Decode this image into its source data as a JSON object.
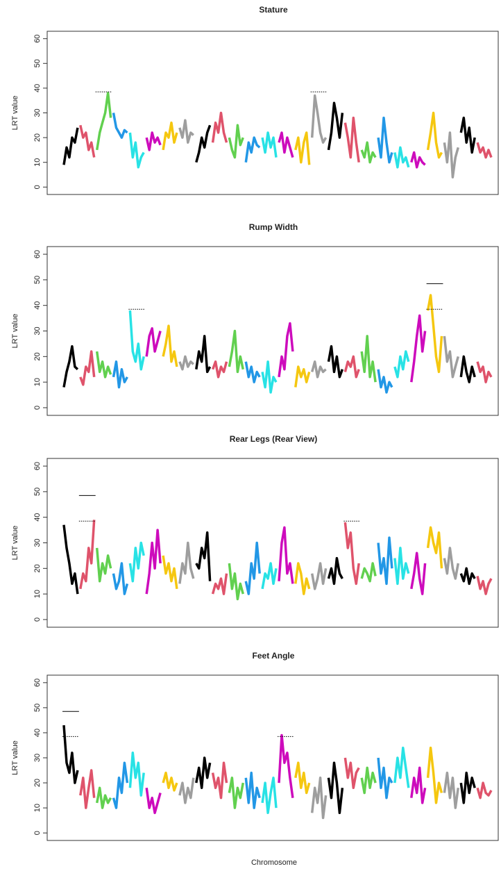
{
  "x_label": "Chromosome",
  "chart_data": [
    {
      "type": "line",
      "title": "Stature",
      "y_label": "LRT value",
      "ylim": [
        -3,
        63
      ],
      "yticks": [
        0,
        10,
        20,
        30,
        40,
        50,
        60
      ],
      "colors": [
        "#000000",
        "#DF536B",
        "#61D04F",
        "#2297E6",
        "#28E2E5",
        "#CD0BBC",
        "#F5C710",
        "#9E9E9E"
      ],
      "series": [
        {
          "values": [
            9,
            16,
            12,
            20,
            18,
            24
          ]
        },
        {
          "values": [
            25,
            20,
            22,
            15,
            18,
            12
          ]
        },
        {
          "values": [
            15,
            22,
            26,
            30,
            38,
            28
          ]
        },
        {
          "values": [
            30,
            24,
            22,
            20,
            23,
            22
          ]
        },
        {
          "values": [
            22,
            12,
            18,
            8,
            12,
            14
          ]
        },
        {
          "values": [
            20,
            15,
            22,
            18,
            20,
            17
          ]
        },
        {
          "values": [
            15,
            22,
            20,
            26,
            18,
            22
          ]
        },
        {
          "values": [
            24,
            20,
            27,
            18,
            22,
            21
          ]
        },
        {
          "values": [
            10,
            14,
            20,
            16,
            22,
            25
          ]
        },
        {
          "values": [
            18,
            26,
            22,
            30,
            22,
            18
          ]
        },
        {
          "values": [
            20,
            15,
            12,
            25,
            17,
            20
          ]
        },
        {
          "values": [
            10,
            18,
            14,
            20,
            17,
            16
          ]
        },
        {
          "values": [
            20,
            14,
            22,
            16,
            20,
            12
          ]
        },
        {
          "values": [
            18,
            22,
            14,
            20,
            16,
            12
          ]
        },
        {
          "values": [
            15,
            20,
            10,
            18,
            22,
            9
          ]
        },
        {
          "values": [
            20,
            37,
            30,
            22,
            18,
            20
          ]
        },
        {
          "values": [
            15,
            22,
            34,
            28,
            20,
            30
          ]
        },
        {
          "values": [
            26,
            20,
            12,
            28,
            18,
            10
          ]
        },
        {
          "values": [
            15,
            12,
            18,
            10,
            14,
            12
          ]
        },
        {
          "values": [
            20,
            12,
            28,
            18,
            10,
            14
          ]
        },
        {
          "values": [
            14,
            8,
            16,
            10,
            12,
            8
          ]
        },
        {
          "values": [
            10,
            14,
            8,
            12,
            10,
            9
          ]
        },
        {
          "values": [
            15,
            22,
            30,
            18,
            12,
            14
          ]
        },
        {
          "values": [
            18,
            10,
            22,
            4,
            12,
            16
          ]
        },
        {
          "values": [
            22,
            28,
            18,
            24,
            14,
            20
          ]
        },
        {
          "values": [
            18,
            14,
            16,
            12,
            15,
            12
          ]
        }
      ],
      "thresholds": [
        {
          "value": 38.5,
          "style": "dotted",
          "over": 2
        },
        {
          "value": 38.5,
          "style": "dotted",
          "over": 15
        }
      ]
    },
    {
      "type": "line",
      "title": "Rump Width",
      "y_label": "LRT value",
      "ylim": [
        -3,
        63
      ],
      "yticks": [
        0,
        10,
        20,
        30,
        40,
        50,
        60
      ],
      "colors": [
        "#000000",
        "#DF536B",
        "#61D04F",
        "#2297E6",
        "#28E2E5",
        "#CD0BBC",
        "#F5C710",
        "#9E9E9E"
      ],
      "series": [
        {
          "values": [
            8,
            14,
            18,
            24,
            16,
            15
          ]
        },
        {
          "values": [
            12,
            9,
            16,
            14,
            22,
            12
          ]
        },
        {
          "values": [
            22,
            14,
            18,
            12,
            16,
            13
          ]
        },
        {
          "values": [
            12,
            18,
            8,
            15,
            10,
            12
          ]
        },
        {
          "values": [
            38,
            22,
            18,
            25,
            15,
            20
          ]
        },
        {
          "values": [
            20,
            28,
            31,
            22,
            26,
            30
          ]
        },
        {
          "values": [
            20,
            25,
            32,
            18,
            22,
            16
          ]
        },
        {
          "values": [
            18,
            15,
            20,
            16,
            18,
            17
          ]
        },
        {
          "values": [
            15,
            22,
            18,
            28,
            14,
            16
          ]
        },
        {
          "values": [
            15,
            18,
            12,
            16,
            14,
            18
          ]
        },
        {
          "values": [
            16,
            22,
            30,
            14,
            20,
            15
          ]
        },
        {
          "values": [
            18,
            12,
            16,
            10,
            14,
            12
          ]
        },
        {
          "values": [
            14,
            8,
            18,
            6,
            12,
            10
          ]
        },
        {
          "values": [
            12,
            20,
            15,
            28,
            33,
            22
          ]
        },
        {
          "values": [
            8,
            16,
            12,
            15,
            10,
            14
          ]
        },
        {
          "values": [
            14,
            18,
            12,
            16,
            14,
            15
          ]
        },
        {
          "values": [
            18,
            24,
            14,
            20,
            12,
            15
          ]
        },
        {
          "values": [
            14,
            18,
            16,
            20,
            12,
            15
          ]
        },
        {
          "values": [
            22,
            14,
            28,
            12,
            18,
            10
          ]
        },
        {
          "values": [
            15,
            8,
            12,
            6,
            10,
            8
          ]
        },
        {
          "values": [
            16,
            12,
            20,
            15,
            22,
            18
          ]
        },
        {
          "values": [
            10,
            18,
            28,
            36,
            22,
            30
          ]
        },
        {
          "values": [
            38,
            44,
            32,
            20,
            14,
            28
          ]
        },
        {
          "values": [
            28,
            18,
            22,
            12,
            16,
            20
          ]
        },
        {
          "values": [
            12,
            20,
            14,
            10,
            16,
            12
          ]
        },
        {
          "values": [
            18,
            14,
            16,
            10,
            14,
            12
          ]
        }
      ],
      "thresholds": [
        {
          "value": 38.5,
          "style": "dotted",
          "over": 4
        },
        {
          "value": 38.5,
          "style": "dotted",
          "over": 22
        },
        {
          "value": 48.5,
          "style": "solid",
          "over": 22
        }
      ]
    },
    {
      "type": "line",
      "title": "Rear Legs (Rear View)",
      "y_label": "LRT value",
      "ylim": [
        -3,
        63
      ],
      "yticks": [
        0,
        10,
        20,
        30,
        40,
        50,
        60
      ],
      "colors": [
        "#000000",
        "#DF536B",
        "#61D04F",
        "#2297E6",
        "#28E2E5",
        "#CD0BBC",
        "#F5C710",
        "#9E9E9E"
      ],
      "series": [
        {
          "values": [
            37,
            28,
            22,
            14,
            18,
            10
          ]
        },
        {
          "values": [
            12,
            18,
            15,
            28,
            22,
            39
          ]
        },
        {
          "values": [
            28,
            15,
            22,
            18,
            25,
            20
          ]
        },
        {
          "values": [
            18,
            12,
            15,
            22,
            10,
            14
          ]
        },
        {
          "values": [
            22,
            15,
            28,
            20,
            30,
            25
          ]
        },
        {
          "values": [
            10,
            18,
            30,
            20,
            35,
            22
          ]
        },
        {
          "values": [
            25,
            18,
            22,
            15,
            20,
            12
          ]
        },
        {
          "values": [
            14,
            22,
            18,
            30,
            20,
            16
          ]
        },
        {
          "values": [
            22,
            20,
            28,
            24,
            34,
            15
          ]
        },
        {
          "values": [
            10,
            14,
            12,
            16,
            10,
            18
          ]
        },
        {
          "values": [
            22,
            12,
            18,
            8,
            14,
            10
          ]
        },
        {
          "values": [
            15,
            10,
            22,
            16,
            30,
            18
          ]
        },
        {
          "values": [
            12,
            18,
            16,
            22,
            14,
            20
          ]
        },
        {
          "values": [
            15,
            30,
            36,
            18,
            22,
            14
          ]
        },
        {
          "values": [
            14,
            22,
            18,
            10,
            16,
            12
          ]
        },
        {
          "values": [
            18,
            12,
            16,
            22,
            14,
            20
          ]
        },
        {
          "values": [
            16,
            20,
            14,
            24,
            18,
            16
          ]
        },
        {
          "values": [
            38,
            28,
            34,
            20,
            14,
            22
          ]
        },
        {
          "values": [
            16,
            20,
            18,
            15,
            22,
            17
          ]
        },
        {
          "values": [
            30,
            18,
            24,
            14,
            32,
            20
          ]
        },
        {
          "values": [
            24,
            14,
            28,
            16,
            22,
            18
          ]
        },
        {
          "values": [
            12,
            18,
            26,
            16,
            10,
            22
          ]
        },
        {
          "values": [
            28,
            36,
            30,
            26,
            34,
            20
          ]
        },
        {
          "values": [
            24,
            18,
            28,
            20,
            16,
            22
          ]
        },
        {
          "values": [
            18,
            15,
            20,
            14,
            18,
            16
          ]
        },
        {
          "values": [
            17,
            12,
            15,
            10,
            14,
            16
          ]
        }
      ],
      "thresholds": [
        {
          "value": 38.5,
          "style": "dotted",
          "over": 1
        },
        {
          "value": 48.5,
          "style": "solid",
          "over": 1
        },
        {
          "value": 38.5,
          "style": "dotted",
          "over": 17
        }
      ]
    },
    {
      "type": "line",
      "title": "Feet Angle",
      "y_label": "LRT value",
      "ylim": [
        -3,
        63
      ],
      "yticks": [
        0,
        10,
        20,
        30,
        40,
        50,
        60
      ],
      "colors": [
        "#000000",
        "#DF536B",
        "#61D04F",
        "#2297E6",
        "#28E2E5",
        "#CD0BBC",
        "#F5C710",
        "#9E9E9E"
      ],
      "series": [
        {
          "values": [
            43,
            28,
            24,
            32,
            20,
            25
          ]
        },
        {
          "values": [
            15,
            22,
            10,
            18,
            25,
            14
          ]
        },
        {
          "values": [
            12,
            18,
            10,
            15,
            12,
            14
          ]
        },
        {
          "values": [
            14,
            10,
            22,
            16,
            28,
            20
          ]
        },
        {
          "values": [
            18,
            32,
            22,
            28,
            15,
            24
          ]
        },
        {
          "values": [
            18,
            10,
            14,
            8,
            12,
            16
          ]
        },
        {
          "values": [
            20,
            24,
            18,
            22,
            17,
            20
          ]
        },
        {
          "values": [
            15,
            20,
            12,
            18,
            14,
            22
          ]
        },
        {
          "values": [
            20,
            26,
            18,
            30,
            22,
            28
          ]
        },
        {
          "values": [
            24,
            18,
            22,
            14,
            28,
            20
          ]
        },
        {
          "values": [
            16,
            22,
            10,
            18,
            14,
            20
          ]
        },
        {
          "values": [
            22,
            12,
            24,
            10,
            18,
            14
          ]
        },
        {
          "values": [
            12,
            20,
            8,
            16,
            22,
            10
          ]
        },
        {
          "values": [
            20,
            39,
            28,
            32,
            22,
            14
          ]
        },
        {
          "values": [
            22,
            28,
            18,
            24,
            16,
            20
          ]
        },
        {
          "values": [
            8,
            18,
            12,
            22,
            6,
            15
          ]
        },
        {
          "values": [
            22,
            14,
            28,
            20,
            8,
            18
          ]
        },
        {
          "values": [
            30,
            22,
            28,
            18,
            24,
            26
          ]
        },
        {
          "values": [
            22,
            16,
            26,
            18,
            24,
            20
          ]
        },
        {
          "values": [
            30,
            18,
            26,
            14,
            22,
            20
          ]
        },
        {
          "values": [
            20,
            30,
            22,
            34,
            26,
            18
          ]
        },
        {
          "values": [
            14,
            22,
            16,
            26,
            12,
            18
          ]
        },
        {
          "values": [
            22,
            34,
            24,
            12,
            20,
            16
          ]
        },
        {
          "values": [
            16,
            24,
            14,
            22,
            10,
            18
          ]
        },
        {
          "values": [
            20,
            12,
            24,
            16,
            22,
            18
          ]
        },
        {
          "values": [
            18,
            14,
            20,
            16,
            15,
            17
          ]
        }
      ],
      "thresholds": [
        {
          "value": 38.5,
          "style": "dotted",
          "over": 0
        },
        {
          "value": 48.5,
          "style": "solid",
          "over": 0
        },
        {
          "value": 38.5,
          "style": "dotted",
          "over": 13
        }
      ]
    }
  ]
}
